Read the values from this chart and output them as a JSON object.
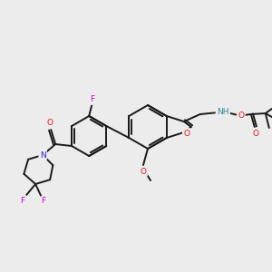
{
  "background_color": "#ececec",
  "bond_color": "#1a1a1a",
  "atom_colors": {
    "O": "#ee1111",
    "N": "#2222dd",
    "F": "#cc00cc",
    "NH": "#338888",
    "C": "#1a1a1a"
  },
  "figsize": [
    3.0,
    3.0
  ],
  "dpi": 100
}
